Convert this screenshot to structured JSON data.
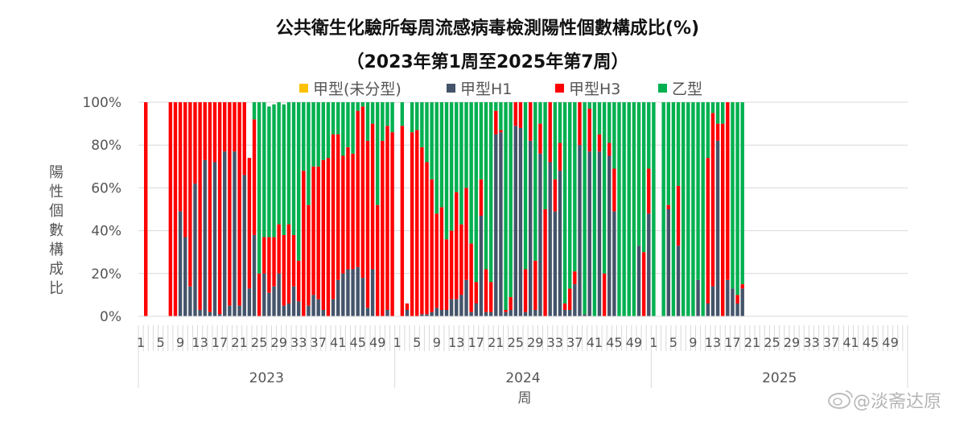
{
  "chart_data": {
    "type": "bar",
    "stacked": true,
    "title": "公共衛生化驗所每周流感病毒檢測陽性個數構成比(%)",
    "subtitle": "（2023年第1周至2025年第7周）",
    "ylabel": "陽性個數構成比",
    "xlabel": "周",
    "ylim": [
      0,
      100
    ],
    "yticks": [
      "0%",
      "20%",
      "40%",
      "60%",
      "80%",
      "100%"
    ],
    "grid": true,
    "legend_position": "top",
    "years": [
      "2023",
      "2024",
      "2025"
    ],
    "week_tick_labels": [
      "1",
      "5",
      "9",
      "13",
      "17",
      "21",
      "25",
      "29",
      "33",
      "37",
      "41",
      "45",
      "49"
    ],
    "series": [
      {
        "name": "甲型(未分型)",
        "color": "#FFC000"
      },
      {
        "name": "甲型H1",
        "color": "#44546A"
      },
      {
        "name": "甲型H3",
        "color": "#FF0000"
      },
      {
        "name": "乙型",
        "color": "#00B050"
      }
    ],
    "h1_values": [
      0,
      0,
      0,
      0,
      0,
      0,
      0,
      0,
      49,
      37,
      14,
      62,
      3,
      73,
      2,
      72,
      1,
      77,
      5,
      77,
      5,
      66,
      13,
      38,
      0,
      20,
      11,
      14,
      20,
      5,
      6,
      14,
      7,
      0,
      5,
      10,
      8,
      3,
      0,
      8,
      17,
      20,
      22,
      22,
      23,
      18,
      4,
      22,
      0,
      0,
      3,
      0,
      0,
      0,
      3,
      0,
      0,
      1,
      1,
      2,
      4,
      3,
      3,
      8,
      8,
      10,
      17,
      2,
      6,
      47,
      2,
      2,
      85,
      86,
      2,
      3,
      89,
      88,
      2,
      82,
      3,
      76,
      0,
      72,
      49,
      68,
      3,
      3,
      15,
      80,
      1,
      77,
      0,
      77,
      0,
      75,
      49,
      0,
      0,
      0,
      0,
      33,
      0,
      48,
      0,
      0,
      0,
      50,
      0,
      33,
      0,
      0,
      0,
      17,
      0,
      6,
      14,
      82,
      0,
      17,
      13,
      6,
      13
    ],
    "h3_values": [
      0,
      100,
      0,
      0,
      0,
      0,
      100,
      100,
      51,
      63,
      86,
      38,
      97,
      27,
      98,
      28,
      99,
      23,
      95,
      23,
      95,
      34,
      61,
      54,
      20,
      17,
      26,
      23,
      23,
      33,
      37,
      24,
      19,
      68,
      47,
      60,
      62,
      70,
      74,
      77,
      68,
      55,
      57,
      54,
      73,
      80,
      78,
      68,
      52,
      82,
      86,
      86,
      0,
      89,
      3,
      86,
      87,
      78,
      71,
      62,
      44,
      48,
      33,
      32,
      50,
      33,
      43,
      32,
      10,
      17,
      20,
      14,
      11,
      1,
      1,
      6,
      21,
      20,
      20,
      18,
      23,
      14,
      50,
      28,
      15,
      13,
      3,
      10,
      6,
      20,
      0,
      20,
      0,
      8,
      20,
      6,
      20,
      0,
      0,
      0,
      0,
      0,
      30,
      21,
      0,
      0,
      0,
      2,
      0,
      28,
      0,
      0,
      0,
      0,
      0,
      68,
      81,
      8,
      90,
      83,
      0,
      4,
      2
    ],
    "b_values": [
      0,
      0,
      0,
      0,
      0,
      0,
      0,
      0,
      0,
      0,
      0,
      0,
      0,
      0,
      0,
      0,
      0,
      0,
      0,
      0,
      0,
      0,
      0,
      8,
      80,
      63,
      61,
      62,
      57,
      61,
      74,
      62,
      74,
      32,
      48,
      30,
      31,
      27,
      26,
      15,
      15,
      25,
      21,
      24,
      4,
      2,
      18,
      10,
      48,
      18,
      11,
      14,
      0,
      11,
      0,
      14,
      13,
      21,
      28,
      36,
      52,
      49,
      64,
      60,
      42,
      57,
      40,
      66,
      84,
      36,
      78,
      84,
      4,
      13,
      97,
      91,
      0,
      2,
      78,
      0,
      74,
      10,
      50,
      0,
      36,
      19,
      97,
      87,
      79,
      0,
      99,
      3,
      100,
      15,
      80,
      19,
      31,
      100,
      100,
      100,
      100,
      67,
      70,
      31,
      100,
      0,
      100,
      48,
      100,
      39,
      100,
      100,
      100,
      83,
      100,
      26,
      5,
      10,
      10,
      0,
      87,
      90,
      85
    ],
    "watermark": "@淡斋达原"
  }
}
